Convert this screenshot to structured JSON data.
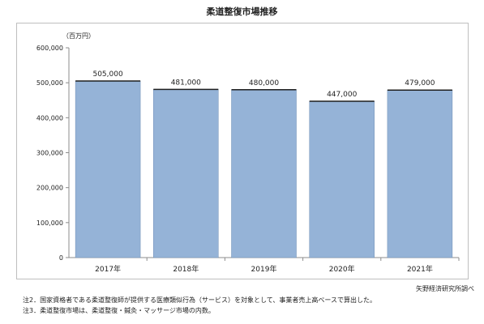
{
  "chart_data": {
    "type": "bar",
    "title": "柔道整復市場推移",
    "unit_label": "（百万円）",
    "categories": [
      "2017年",
      "2018年",
      "2019年",
      "2020年",
      "2021年"
    ],
    "values": [
      505000,
      481000,
      480000,
      447000,
      479000
    ],
    "value_labels": [
      "505,000",
      "481,000",
      "480,000",
      "447,000",
      "479,000"
    ],
    "ylim": [
      0,
      600000
    ],
    "yticks": [
      0,
      100000,
      200000,
      300000,
      400000,
      500000,
      600000
    ],
    "ytick_labels": [
      "0",
      "100,000",
      "200,000",
      "300,000",
      "400,000",
      "500,000",
      "600,000"
    ],
    "xlabel": "",
    "ylabel": "",
    "grid": false,
    "legend": "none",
    "bar_color": "#95b3d7",
    "bar_edge_color": "#1f1f1f"
  },
  "source": "矢野経済研究所調べ",
  "notes": [
    "注2．国家資格者である柔道整復師が提供する医療類似行為（サービス）を対象として、事業者売上高ベースで算出した。",
    "注3．柔道整復市場は、柔道整復・鍼灸・マッサージ市場の内数。"
  ]
}
